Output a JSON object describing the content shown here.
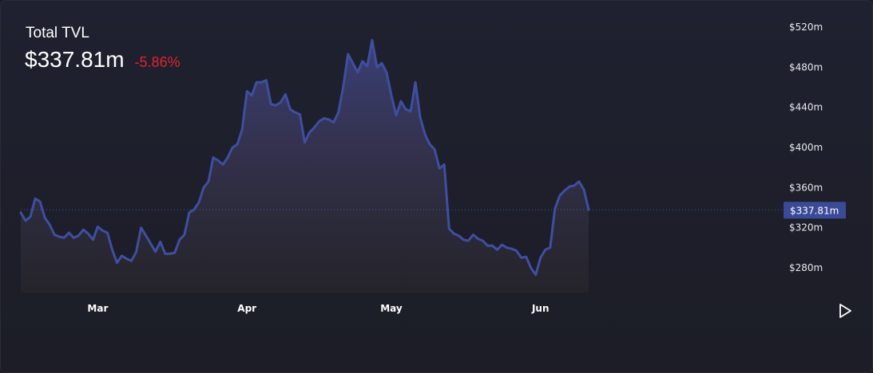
{
  "header": {
    "title": "Total TVL",
    "value": "$337.81m",
    "change": "-5.86%"
  },
  "colors": {
    "line": "#3e4fa0",
    "change_negative": "#e0232e",
    "current_badge": "#3a4a96",
    "background": "#1c1d26"
  },
  "current_label": "$337.81m",
  "controls": {
    "play_icon": "play-icon"
  },
  "chart_data": {
    "type": "area",
    "title": "Total TVL",
    "y_unit": "millions USD",
    "ylim": [
      255,
      525
    ],
    "yticks": [
      {
        "value": 520,
        "label": "$520m"
      },
      {
        "value": 480,
        "label": "$480m"
      },
      {
        "value": 440,
        "label": "$440m"
      },
      {
        "value": 400,
        "label": "$400m"
      },
      {
        "value": 360,
        "label": "$360m"
      },
      {
        "value": 320,
        "label": "$320m"
      },
      {
        "value": 280,
        "label": "$280m"
      }
    ],
    "xticks": [
      {
        "index": 16,
        "label": "Mar"
      },
      {
        "index": 47,
        "label": "Apr"
      },
      {
        "index": 77,
        "label": "May"
      },
      {
        "index": 108,
        "label": "Jun"
      }
    ],
    "current_value": 337.81,
    "grid": false,
    "values": [
      335,
      327,
      331,
      349,
      346,
      330,
      323,
      313,
      311,
      310,
      315,
      310,
      312,
      318,
      314,
      308,
      321,
      317,
      315,
      298,
      285,
      292,
      289,
      287,
      296,
      320,
      312,
      304,
      296,
      306,
      294,
      294,
      295,
      308,
      313,
      335,
      338,
      345,
      360,
      366,
      390,
      387,
      383,
      390,
      400,
      403,
      418,
      456,
      452,
      465,
      465,
      467,
      443,
      442,
      445,
      453,
      438,
      435,
      433,
      405,
      415,
      420,
      426,
      429,
      428,
      425,
      435,
      460,
      493,
      484,
      475,
      486,
      481,
      507,
      480,
      484,
      475,
      452,
      432,
      446,
      438,
      436,
      465,
      430,
      413,
      403,
      398,
      379,
      383,
      319,
      314,
      312,
      308,
      307,
      313,
      309,
      307,
      302,
      302,
      298,
      303,
      300,
      299,
      297,
      290,
      291,
      280,
      273,
      290,
      298,
      300,
      339,
      352,
      357,
      361,
      362,
      366,
      358,
      338
    ]
  }
}
